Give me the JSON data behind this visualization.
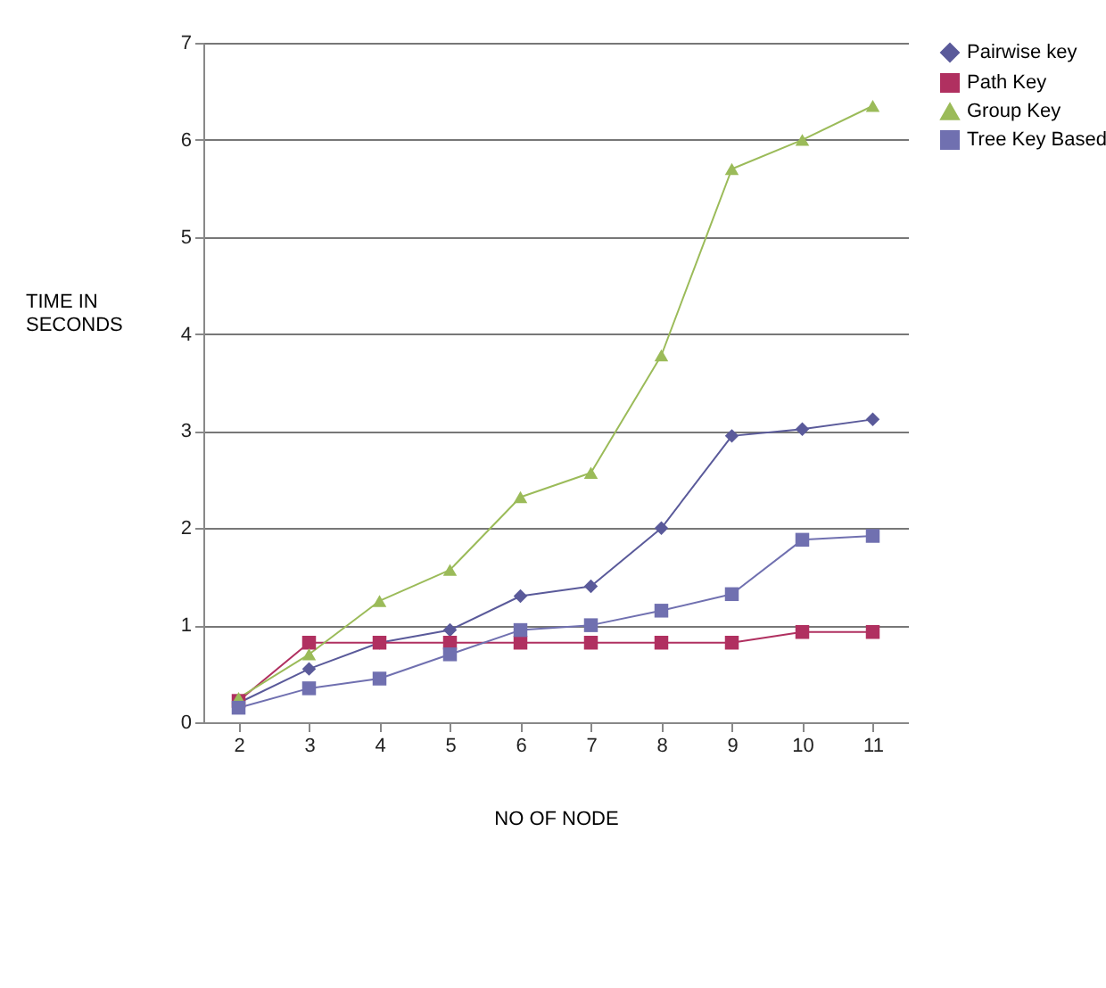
{
  "chart_data": {
    "type": "line",
    "xlabel": "NO OF NODE",
    "ylabel": "TIME IN SECONDS",
    "categories": [
      "2",
      "3",
      "4",
      "5",
      "6",
      "7",
      "8",
      "9",
      "10",
      "11"
    ],
    "ylim": [
      0,
      7
    ],
    "yticks": [
      0,
      1,
      2,
      3,
      4,
      5,
      6,
      7
    ],
    "grid": "y",
    "legend": "right",
    "series": [
      {
        "name": "Pairwise key",
        "color": "#5a5a9a",
        "marker": "diamond",
        "values": [
          0.2,
          0.55,
          0.82,
          0.95,
          1.3,
          1.4,
          2.0,
          2.95,
          3.02,
          3.12
        ]
      },
      {
        "name": "Path Key",
        "color": "#b03060",
        "marker": "square",
        "values": [
          0.22,
          0.82,
          0.82,
          0.82,
          0.82,
          0.82,
          0.82,
          0.82,
          0.93,
          0.93
        ]
      },
      {
        "name": "Group Key",
        "color": "#9bbb59",
        "marker": "triangle",
        "values": [
          0.25,
          0.7,
          1.25,
          1.57,
          2.32,
          2.57,
          3.78,
          5.7,
          6.0,
          6.35
        ]
      },
      {
        "name": "Tree Key Based",
        "color": "#7070b0",
        "marker": "square",
        "values": [
          0.15,
          0.35,
          0.45,
          0.7,
          0.95,
          1.0,
          1.15,
          1.32,
          1.88,
          1.92
        ]
      }
    ]
  }
}
